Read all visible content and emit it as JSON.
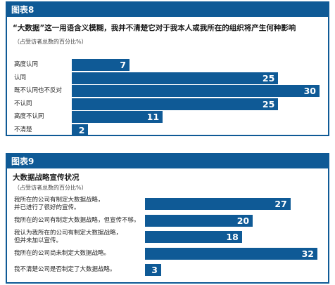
{
  "chart_data": [
    {
      "type": "bar",
      "header": "图表8",
      "title": "“大数据”这一用语含义模糊，我并不清楚它对于我本人或我所在的组织将产生何种影响",
      "subtitle": "（占受访者总数的百分比%）",
      "categories": [
        "高度认同",
        "认同",
        "既不认同也不反对",
        "不认同",
        "高度不认同",
        "不清楚"
      ],
      "values": [
        7,
        25,
        30,
        25,
        11,
        2
      ],
      "xlim": [
        0,
        30
      ],
      "colors": {
        "bar": "#0f5a96",
        "label": "#ffffff"
      }
    },
    {
      "type": "bar",
      "header": "图表9",
      "title": "大数据战略宣传状况",
      "subtitle": "（占受访者总数的百分比%）",
      "categories": [
        "我所在的公司有制定大数据战略，\n并已进行了很好的宣传。",
        "我所在的公司有制定大数据战略，但宣传不够。",
        "我认为我所在的公司有制定大数据战略，\n但并未加以宣传。",
        "我所在的公司尚未制定大数据战略。",
        "我不清楚公司是否制定了大数据战略。"
      ],
      "values": [
        27,
        20,
        18,
        32,
        3
      ],
      "xlim": [
        0,
        32
      ],
      "colors": {
        "bar": "#0f5a96",
        "label": "#ffffff"
      }
    }
  ]
}
